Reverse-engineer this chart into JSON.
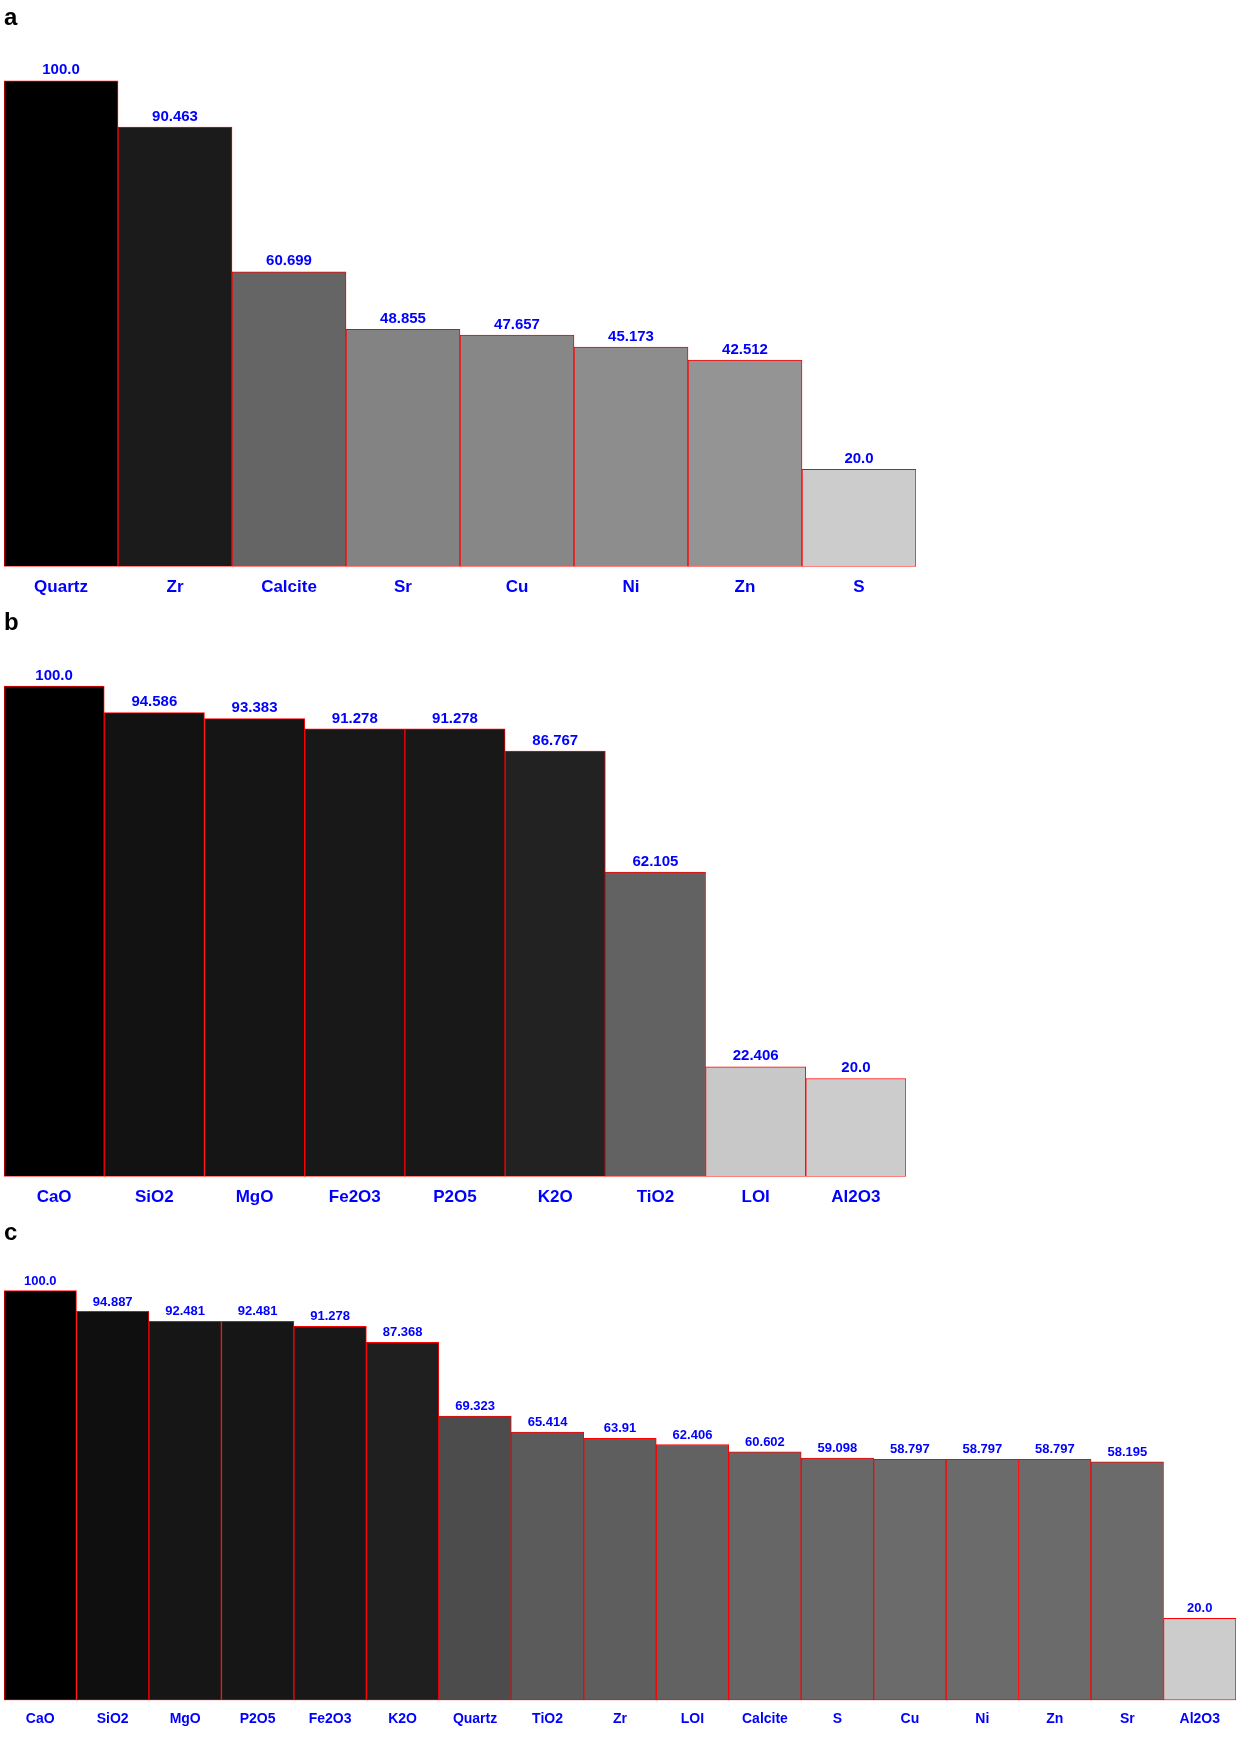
{
  "chart_data": [
    {
      "type": "bar",
      "title": "a",
      "categories": [
        "Quartz",
        "Zr",
        "Calcite",
        "Sr",
        "Cu",
        "Ni",
        "Zn",
        "S"
      ],
      "values": [
        100.0,
        90.463,
        60.699,
        48.855,
        47.657,
        45.173,
        42.512,
        20.0
      ],
      "value_labels": [
        "100.0",
        "90.463",
        "60.699",
        "48.855",
        "47.657",
        "45.173",
        "42.512",
        "20.0"
      ],
      "colors": [
        "#000000",
        "#1b1b1b",
        "#656565",
        "#838383",
        "#878787",
        "#8d8d8d",
        "#949494",
        "#cccccc"
      ]
    },
    {
      "type": "bar",
      "title": "b",
      "categories": [
        "CaO",
        "SiO2",
        "MgO",
        "Fe2O3",
        "P2O5",
        "K2O",
        "TiO2",
        "LOI",
        "Al2O3"
      ],
      "values": [
        100.0,
        94.586,
        93.383,
        91.278,
        91.278,
        86.767,
        62.105,
        22.406,
        20.0
      ],
      "value_labels": [
        "100.0",
        "94.586",
        "93.383",
        "91.278",
        "91.278",
        "86.767",
        "62.105",
        "22.406",
        "20.0"
      ],
      "colors": [
        "#000000",
        "#121212",
        "#151515",
        "#181818",
        "#181818",
        "#222222",
        "#626262",
        "#c8c8c8",
        "#cccccc"
      ]
    },
    {
      "type": "bar",
      "title": "c",
      "categories": [
        "CaO",
        "SiO2",
        "MgO",
        "P2O5",
        "Fe2O3",
        "K2O",
        "Quartz",
        "TiO2",
        "Zr",
        "LOI",
        "Calcite",
        "S",
        "Cu",
        "Ni",
        "Zn",
        "Sr",
        "Al2O3"
      ],
      "values": [
        100.0,
        94.887,
        92.481,
        92.481,
        91.278,
        87.368,
        69.323,
        65.414,
        63.91,
        62.406,
        60.602,
        59.098,
        58.797,
        58.797,
        58.797,
        58.195,
        20.0
      ],
      "value_labels": [
        "100.0",
        "94.887",
        "92.481",
        "92.481",
        "91.278",
        "87.368",
        "69.323",
        "65.414",
        "63.91",
        "62.406",
        "60.602",
        "59.098",
        "58.797",
        "58.797",
        "58.797",
        "58.195",
        "20.0"
      ],
      "colors": [
        "#000000",
        "#0f0f0f",
        "#161616",
        "#161616",
        "#181818",
        "#1f1f1f",
        "#4c4c4c",
        "#5b5b5b",
        "#5e5e5e",
        "#626262",
        "#666666",
        "#686868",
        "#6b6b6b",
        "#6b6b6b",
        "#6b6b6b",
        "#6b6b6b",
        "#cccccc"
      ]
    }
  ]
}
